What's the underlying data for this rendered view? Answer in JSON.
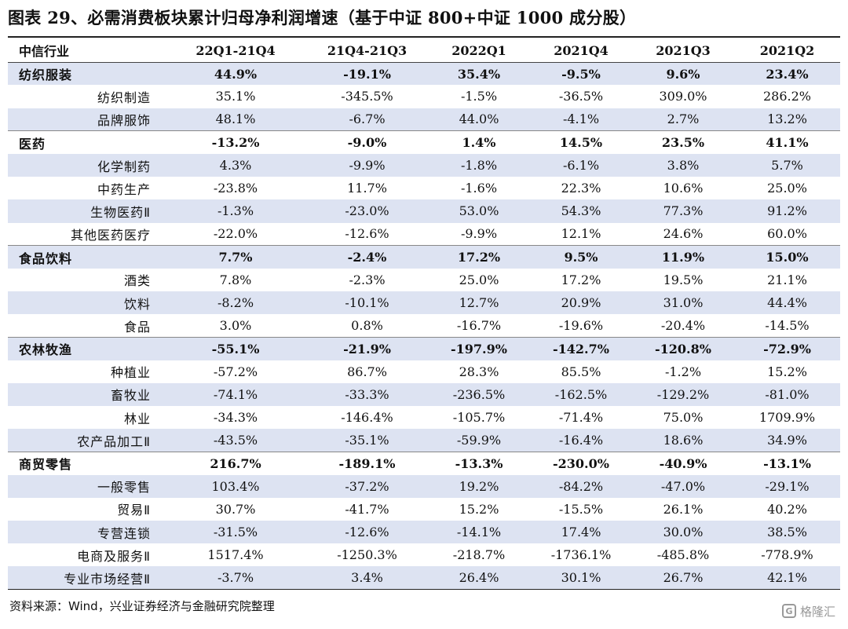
{
  "title": "图表 29、必需消费板块累计归母净利润增速（基于中证 800+中证 1000 成分股）",
  "columns": [
    "中信行业",
    "22Q1-21Q4",
    "21Q4-21Q3",
    "2022Q1",
    "2021Q4",
    "2021Q3",
    "2021Q2"
  ],
  "rows": [
    {
      "label": "纺织服装",
      "sector": true,
      "values": [
        "44.9%",
        "-19.1%",
        "35.4%",
        "-9.5%",
        "9.6%",
        "23.4%"
      ]
    },
    {
      "label": "纺织制造",
      "sector": false,
      "values": [
        "35.1%",
        "-345.5%",
        "-1.5%",
        "-36.5%",
        "309.0%",
        "286.2%"
      ]
    },
    {
      "label": "品牌服饰",
      "sector": false,
      "values": [
        "48.1%",
        "-6.7%",
        "44.0%",
        "-4.1%",
        "2.7%",
        "13.2%"
      ]
    },
    {
      "label": "医药",
      "sector": true,
      "values": [
        "-13.2%",
        "-9.0%",
        "1.4%",
        "14.5%",
        "23.5%",
        "41.1%"
      ]
    },
    {
      "label": "化学制药",
      "sector": false,
      "values": [
        "4.3%",
        "-9.9%",
        "-1.8%",
        "-6.1%",
        "3.8%",
        "5.7%"
      ]
    },
    {
      "label": "中药生产",
      "sector": false,
      "values": [
        "-23.8%",
        "11.7%",
        "-1.6%",
        "22.3%",
        "10.6%",
        "25.0%"
      ]
    },
    {
      "label": "生物医药Ⅱ",
      "sector": false,
      "values": [
        "-1.3%",
        "-23.0%",
        "53.0%",
        "54.3%",
        "77.3%",
        "91.2%"
      ]
    },
    {
      "label": "其他医药医疗",
      "sector": false,
      "values": [
        "-22.0%",
        "-12.6%",
        "-9.9%",
        "12.1%",
        "24.6%",
        "60.0%"
      ]
    },
    {
      "label": "食品饮料",
      "sector": true,
      "values": [
        "7.7%",
        "-2.4%",
        "17.2%",
        "9.5%",
        "11.9%",
        "15.0%"
      ]
    },
    {
      "label": "酒类",
      "sector": false,
      "values": [
        "7.8%",
        "-2.3%",
        "25.0%",
        "17.2%",
        "19.5%",
        "21.1%"
      ]
    },
    {
      "label": "饮料",
      "sector": false,
      "values": [
        "-8.2%",
        "-10.1%",
        "12.7%",
        "20.9%",
        "31.0%",
        "44.4%"
      ]
    },
    {
      "label": "食品",
      "sector": false,
      "values": [
        "3.0%",
        "0.8%",
        "-16.7%",
        "-19.6%",
        "-20.4%",
        "-14.5%"
      ]
    },
    {
      "label": "农林牧渔",
      "sector": true,
      "values": [
        "-55.1%",
        "-21.9%",
        "-197.9%",
        "-142.7%",
        "-120.8%",
        "-72.9%"
      ]
    },
    {
      "label": "种植业",
      "sector": false,
      "values": [
        "-57.2%",
        "86.7%",
        "28.3%",
        "85.5%",
        "-1.2%",
        "15.2%"
      ]
    },
    {
      "label": "畜牧业",
      "sector": false,
      "values": [
        "-74.1%",
        "-33.3%",
        "-236.5%",
        "-162.5%",
        "-129.2%",
        "-81.0%"
      ]
    },
    {
      "label": "林业",
      "sector": false,
      "values": [
        "-34.3%",
        "-146.4%",
        "-105.7%",
        "-71.4%",
        "75.0%",
        "1709.9%"
      ]
    },
    {
      "label": "农产品加工Ⅱ",
      "sector": false,
      "values": [
        "-43.5%",
        "-35.1%",
        "-59.9%",
        "-16.4%",
        "18.6%",
        "34.9%"
      ]
    },
    {
      "label": "商贸零售",
      "sector": true,
      "values": [
        "216.7%",
        "-189.1%",
        "-13.3%",
        "-230.0%",
        "-40.9%",
        "-13.1%"
      ]
    },
    {
      "label": "一般零售",
      "sector": false,
      "values": [
        "103.4%",
        "-37.2%",
        "19.2%",
        "-84.2%",
        "-47.0%",
        "-29.1%"
      ]
    },
    {
      "label": "贸易Ⅱ",
      "sector": false,
      "values": [
        "30.7%",
        "-41.7%",
        "15.2%",
        "-15.5%",
        "26.1%",
        "40.2%"
      ]
    },
    {
      "label": "专营连锁",
      "sector": false,
      "values": [
        "-31.5%",
        "-12.6%",
        "-14.1%",
        "17.4%",
        "30.0%",
        "38.5%"
      ]
    },
    {
      "label": "电商及服务Ⅱ",
      "sector": false,
      "values": [
        "1517.4%",
        "-1250.3%",
        "-218.7%",
        "-1736.1%",
        "-485.8%",
        "-778.9%"
      ]
    },
    {
      "label": "专业市场经营Ⅱ",
      "sector": false,
      "values": [
        "-3.7%",
        "3.4%",
        "26.4%",
        "30.1%",
        "26.7%",
        "42.1%"
      ]
    }
  ],
  "source": "资料来源：Wind，兴业证券经济与金融研究院整理",
  "watermark": "格隆汇",
  "watermark_logo": "G",
  "colors": {
    "shade": "#dde3f2"
  }
}
